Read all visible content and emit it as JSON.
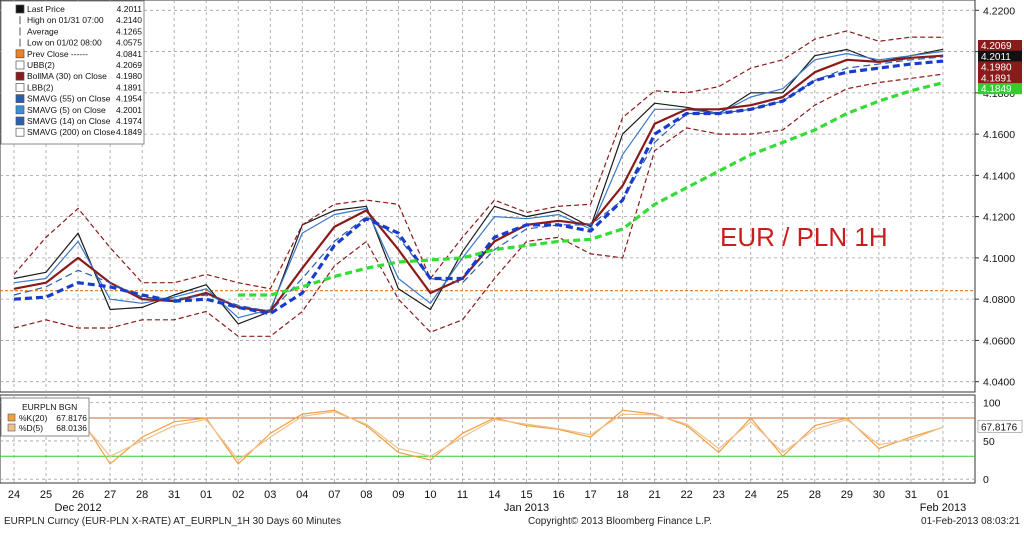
{
  "chart_data": [
    {
      "type": "line",
      "title": "",
      "annotation": "EUR / PLN 1H",
      "ylim": [
        4.035,
        4.225
      ],
      "y_ticks": [
        "4.0400",
        "4.0600",
        "4.0800",
        "4.1000",
        "4.1200",
        "4.1400",
        "4.1600",
        "4.1800",
        "4.2000",
        "4.2200"
      ],
      "grid": true,
      "x_categories": [
        "24",
        "25",
        "26",
        "27",
        "28",
        "31",
        "01",
        "02",
        "03",
        "04",
        "07",
        "08",
        "09",
        "10",
        "11",
        "14",
        "15",
        "16",
        "17",
        "18",
        "21",
        "22",
        "23",
        "24",
        "25",
        "28",
        "29",
        "30",
        "31",
        "01"
      ],
      "x_month_labels": [
        {
          "label": "Dec 2012",
          "at": "26"
        },
        {
          "label": "Jan 2013",
          "at": "15"
        },
        {
          "label": "Feb 2013",
          "at": "01"
        }
      ],
      "prev_close": 4.0841,
      "series": [
        {
          "name": "Last Price",
          "color": "#1a1a1a",
          "values": [
            4.09,
            4.093,
            4.112,
            4.075,
            4.076,
            4.082,
            4.087,
            4.068,
            4.074,
            4.116,
            4.123,
            4.125,
            4.085,
            4.075,
            4.103,
            4.125,
            4.12,
            4.123,
            4.115,
            4.16,
            4.175,
            4.173,
            4.17,
            4.18,
            4.18,
            4.198,
            4.201,
            4.195,
            4.198,
            4.2011
          ]
        },
        {
          "name": "SMAVG (5) on Close",
          "color": "#3a78c8",
          "values": [
            4.088,
            4.09,
            4.108,
            4.08,
            4.078,
            4.081,
            4.085,
            4.071,
            4.075,
            4.112,
            4.121,
            4.124,
            4.09,
            4.078,
            4.1,
            4.12,
            4.119,
            4.121,
            4.114,
            4.15,
            4.172,
            4.172,
            4.17,
            4.178,
            4.182,
            4.196,
            4.199,
            4.196,
            4.198,
            4.2001
          ]
        },
        {
          "name": "BollMA (30) on Close",
          "color": "#8b1a1a",
          "values": [
            4.085,
            4.088,
            4.1,
            4.088,
            4.08,
            4.079,
            4.083,
            4.076,
            4.074,
            4.095,
            4.115,
            4.123,
            4.104,
            4.083,
            4.09,
            4.108,
            4.116,
            4.118,
            4.116,
            4.135,
            4.165,
            4.172,
            4.172,
            4.174,
            4.178,
            4.19,
            4.196,
            4.195,
            4.197,
            4.198
          ]
        },
        {
          "name": "UBB(2)",
          "color": "#8b1a1a",
          "dash": true,
          "values": [
            4.092,
            4.11,
            4.124,
            4.105,
            4.088,
            4.088,
            4.092,
            4.088,
            4.085,
            4.116,
            4.126,
            4.128,
            4.126,
            4.09,
            4.11,
            4.128,
            4.122,
            4.125,
            4.126,
            4.168,
            4.181,
            4.18,
            4.183,
            4.192,
            4.196,
            4.206,
            4.21,
            4.205,
            4.207,
            4.2069
          ]
        },
        {
          "name": "LBB(2)",
          "color": "#8b1a1a",
          "dash": true,
          "values": [
            4.066,
            4.07,
            4.066,
            4.066,
            4.07,
            4.07,
            4.074,
            4.062,
            4.062,
            4.074,
            4.096,
            4.108,
            4.08,
            4.064,
            4.07,
            4.09,
            4.108,
            4.11,
            4.102,
            4.1,
            4.152,
            4.163,
            4.16,
            4.16,
            4.162,
            4.174,
            4.182,
            4.185,
            4.187,
            4.1891
          ]
        },
        {
          "name": "SMAVG (14) on Close",
          "color": "#2a5fb0",
          "dash": true,
          "values": [
            4.082,
            4.086,
            4.094,
            4.088,
            4.081,
            4.08,
            4.082,
            4.077,
            4.074,
            4.09,
            4.108,
            4.12,
            4.11,
            4.09,
            4.088,
            4.104,
            4.114,
            4.116,
            4.116,
            4.128,
            4.156,
            4.17,
            4.17,
            4.172,
            4.176,
            4.186,
            4.192,
            4.194,
            4.196,
            4.1974
          ]
        },
        {
          "name": "SMAVG (55) on Close",
          "color": "#1a3ccc",
          "dash": true,
          "values": [
            4.08,
            4.081,
            4.088,
            4.086,
            4.082,
            4.079,
            4.08,
            4.076,
            4.073,
            4.083,
            4.106,
            4.119,
            4.112,
            4.09,
            4.09,
            4.11,
            4.116,
            4.116,
            4.113,
            4.128,
            4.16,
            4.17,
            4.17,
            4.172,
            4.176,
            4.186,
            4.19,
            4.192,
            4.194,
            4.1954
          ]
        },
        {
          "name": "SMAVG (200) on Close",
          "color": "#33dd33",
          "dash": true,
          "values": [
            null,
            null,
            null,
            null,
            null,
            null,
            null,
            4.082,
            4.082,
            4.086,
            4.091,
            4.095,
            4.098,
            4.099,
            4.1,
            4.104,
            4.106,
            4.108,
            4.109,
            4.114,
            4.126,
            4.134,
            4.142,
            4.15,
            4.156,
            4.162,
            4.17,
            4.176,
            4.181,
            4.1849
          ]
        }
      ],
      "legend": [
        {
          "label": "Last Price",
          "value": "4.2011",
          "icon": "filled-square"
        },
        {
          "label": "High on 01/31 07:00",
          "value": "4.2140",
          "icon": "high-marker"
        },
        {
          "label": "Average",
          "value": "4.1265",
          "icon": "average-marker"
        },
        {
          "label": "Low on 01/02 08:00",
          "value": "4.0575",
          "icon": "low-marker"
        },
        {
          "label": "Prev Close ------",
          "value": "4.0841",
          "icon": "orange-square"
        },
        {
          "label": "UBB(2)",
          "value": "4.2069",
          "icon": "outline-square"
        },
        {
          "label": "BollMA (30) on Close",
          "value": "4.1980",
          "icon": "dark-red-square"
        },
        {
          "label": "LBB(2)",
          "value": "4.1891",
          "icon": "outline-square"
        },
        {
          "label": "SMAVG (55) on Close",
          "value": "4.1954",
          "icon": "blue-square"
        },
        {
          "label": "SMAVG (5) on Close",
          "value": "4.2001",
          "icon": "light-blue-square"
        },
        {
          "label": "SMAVG (14) on Close",
          "value": "4.1974",
          "icon": "blue-square"
        },
        {
          "label": "SMAVG (200) on Close",
          "value": "4.1849",
          "icon": "green-dashed-square"
        }
      ],
      "right_labels": [
        {
          "value": "4.2069",
          "color": "#8b1a1a"
        },
        {
          "value": "4.2011",
          "color": "#111111"
        },
        {
          "value": "4.1980",
          "color": "#8b1a1a"
        },
        {
          "value": "4.1891",
          "color": "#8b1a1a"
        },
        {
          "value": "4.1849",
          "color": "#33cc33"
        }
      ]
    },
    {
      "type": "line",
      "title": "EURPLN BGN",
      "ylim": [
        -5,
        110
      ],
      "y_ticks": [
        "0",
        "50",
        "100"
      ],
      "levels": [
        {
          "value": 80,
          "color": "#cc6633"
        },
        {
          "value": 30,
          "color": "#33cc33"
        }
      ],
      "series": [
        {
          "name": "%K(20)",
          "value": "67.8176",
          "color": "#f0a040",
          "values": [
            60,
            70,
            85,
            20,
            55,
            75,
            80,
            20,
            60,
            85,
            90,
            70,
            35,
            25,
            60,
            80,
            70,
            65,
            55,
            90,
            85,
            70,
            35,
            80,
            30,
            70,
            80,
            40,
            55,
            67.8
          ]
        },
        {
          "name": "%D(5)",
          "value": "68.0136",
          "color": "#f0c090",
          "values": [
            58,
            68,
            80,
            30,
            50,
            70,
            78,
            25,
            55,
            82,
            88,
            72,
            40,
            30,
            55,
            78,
            72,
            66,
            58,
            85,
            84,
            72,
            40,
            75,
            35,
            65,
            78,
            45,
            52,
            68.0
          ]
        }
      ],
      "right_label": {
        "value": "67.8176",
        "color": "#ffffff"
      }
    }
  ],
  "footer": {
    "left": "EURPLN Curncy (EUR-PLN X-RATE) AT_EURPLN_1H 30 Days 60 Minutes",
    "center": "Copyright© 2013 Bloomberg Finance L.P.",
    "right": "01-Feb-2013 08:03:21"
  },
  "colors": {
    "grid": "#a0a0a0",
    "axis": "#333333",
    "annotation": "#c81e1e"
  }
}
